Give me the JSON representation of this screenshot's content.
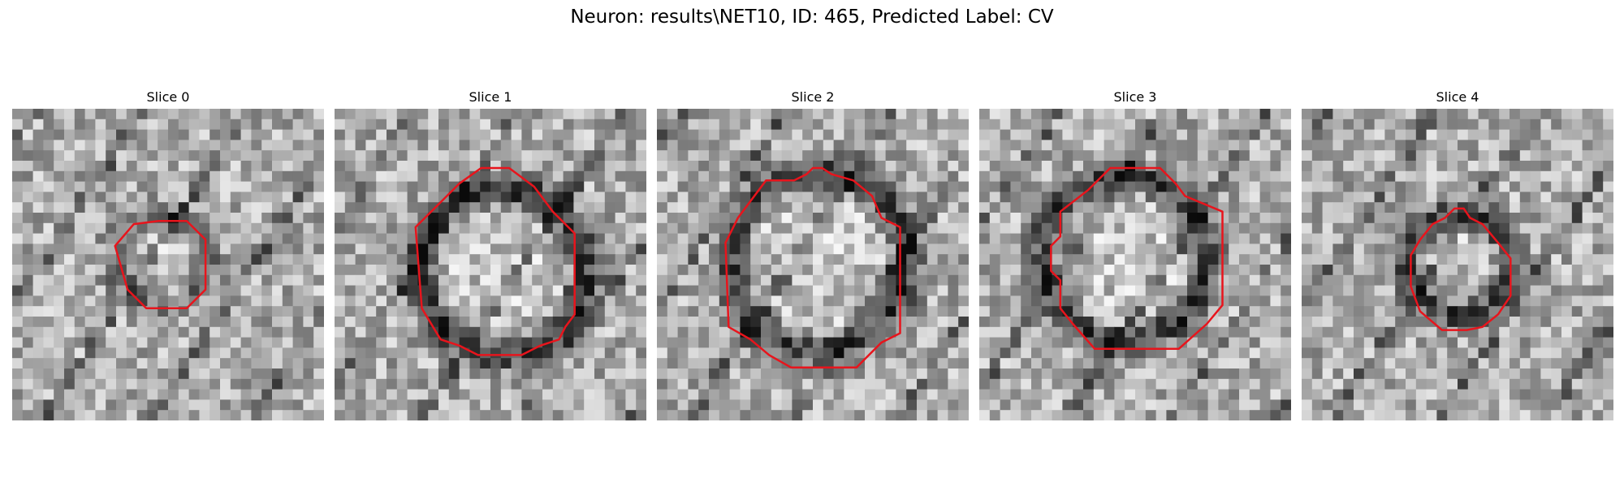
{
  "figure": {
    "suptitle": "Neuron: results\\NET10, ID: 465, Predicted Label: CV",
    "panels": [
      {
        "title": "Slice 0",
        "seed": 11,
        "ring_dark": 0.45,
        "contour": [
          [
            0.47,
            0.36
          ],
          [
            0.56,
            0.36
          ],
          [
            0.62,
            0.42
          ],
          [
            0.62,
            0.58
          ],
          [
            0.56,
            0.64
          ],
          [
            0.43,
            0.64
          ],
          [
            0.37,
            0.58
          ],
          [
            0.33,
            0.44
          ],
          [
            0.39,
            0.37
          ]
        ]
      },
      {
        "title": "Slice 1",
        "seed": 23,
        "ring_dark": 0.85,
        "contour": [
          [
            0.47,
            0.19
          ],
          [
            0.56,
            0.19
          ],
          [
            0.64,
            0.25
          ],
          [
            0.7,
            0.33
          ],
          [
            0.77,
            0.4
          ],
          [
            0.77,
            0.66
          ],
          [
            0.74,
            0.7
          ],
          [
            0.72,
            0.74
          ],
          [
            0.66,
            0.76
          ],
          [
            0.6,
            0.79
          ],
          [
            0.46,
            0.79
          ],
          [
            0.4,
            0.76
          ],
          [
            0.34,
            0.74
          ],
          [
            0.28,
            0.64
          ],
          [
            0.26,
            0.38
          ],
          [
            0.35,
            0.29
          ],
          [
            0.4,
            0.24
          ]
        ]
      },
      {
        "title": "Slice 2",
        "seed": 37,
        "ring_dark": 0.8,
        "contour": [
          [
            0.48,
            0.21
          ],
          [
            0.5,
            0.19
          ],
          [
            0.53,
            0.19
          ],
          [
            0.56,
            0.21
          ],
          [
            0.63,
            0.23
          ],
          [
            0.69,
            0.28
          ],
          [
            0.72,
            0.35
          ],
          [
            0.78,
            0.38
          ],
          [
            0.78,
            0.72
          ],
          [
            0.72,
            0.75
          ],
          [
            0.68,
            0.79
          ],
          [
            0.64,
            0.83
          ],
          [
            0.56,
            0.83
          ],
          [
            0.43,
            0.83
          ],
          [
            0.36,
            0.79
          ],
          [
            0.3,
            0.74
          ],
          [
            0.23,
            0.7
          ],
          [
            0.22,
            0.43
          ],
          [
            0.26,
            0.35
          ],
          [
            0.35,
            0.23
          ],
          [
            0.44,
            0.23
          ]
        ]
      },
      {
        "title": "Slice 3",
        "seed": 41,
        "ring_dark": 0.8,
        "contour": [
          [
            0.42,
            0.19
          ],
          [
            0.58,
            0.19
          ],
          [
            0.63,
            0.24
          ],
          [
            0.66,
            0.28
          ],
          [
            0.78,
            0.33
          ],
          [
            0.78,
            0.63
          ],
          [
            0.73,
            0.69
          ],
          [
            0.64,
            0.77
          ],
          [
            0.62,
            0.77
          ],
          [
            0.37,
            0.77
          ],
          [
            0.3,
            0.69
          ],
          [
            0.26,
            0.64
          ],
          [
            0.26,
            0.55
          ],
          [
            0.23,
            0.52
          ],
          [
            0.23,
            0.44
          ],
          [
            0.26,
            0.41
          ],
          [
            0.26,
            0.33
          ],
          [
            0.35,
            0.26
          ]
        ]
      },
      {
        "title": "Slice 4",
        "seed": 53,
        "ring_dark": 0.75,
        "contour": [
          [
            0.49,
            0.32
          ],
          [
            0.52,
            0.32
          ],
          [
            0.54,
            0.35
          ],
          [
            0.58,
            0.37
          ],
          [
            0.63,
            0.43
          ],
          [
            0.67,
            0.48
          ],
          [
            0.67,
            0.6
          ],
          [
            0.63,
            0.66
          ],
          [
            0.58,
            0.7
          ],
          [
            0.53,
            0.71
          ],
          [
            0.45,
            0.71
          ],
          [
            0.38,
            0.65
          ],
          [
            0.35,
            0.57
          ],
          [
            0.35,
            0.47
          ],
          [
            0.38,
            0.42
          ],
          [
            0.42,
            0.37
          ],
          [
            0.46,
            0.35
          ]
        ]
      }
    ]
  },
  "colors": {
    "contour": "#e8141c",
    "background": "#ffffff"
  },
  "icons": []
}
